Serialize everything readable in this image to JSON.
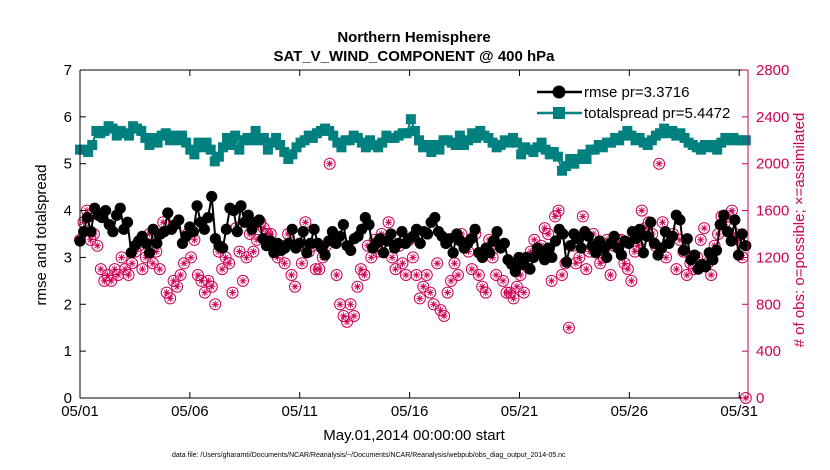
{
  "chart_data": {
    "type": "line",
    "title": "Northern Hemisphere",
    "subtitle": "SAT_V_WIND_COMPONENT @ 400 hPa",
    "xlabel": "May.01,2014 00:00:00 start",
    "ylabel_left": "rmse and totalspread",
    "ylabel_right": "# of obs: o=possible; ×=assimilated",
    "footnote": "data file: /Users/gharamti/Documents/NCAR/Reanalysis/~/Documents/NCAR/Reanalysis/webpub/obs_diag_output_2014-05.nc",
    "xlim": [
      1,
      31.4
    ],
    "ylim_left": [
      0,
      7
    ],
    "ylim_right": [
      0,
      2800
    ],
    "x_ticks": [
      1,
      6,
      11,
      16,
      21,
      26,
      31
    ],
    "x_tick_labels": [
      "05/01",
      "05/06",
      "05/11",
      "05/16",
      "05/21",
      "05/26",
      "05/31"
    ],
    "y_ticks_left": [
      "0",
      "1",
      "2",
      "3",
      "4",
      "5",
      "6",
      "7"
    ],
    "y_ticks_right": [
      "0",
      "400",
      "800",
      "1200",
      "1600",
      "2000",
      "2400",
      "2800"
    ],
    "legend_position": "top-right",
    "colors": {
      "rmse": "#000000",
      "totalspread": "#00807f",
      "obs": "#cc0055"
    },
    "series": [
      {
        "name": "rmse",
        "legend_label": "rmse pr=3.3716",
        "marker": "circle",
        "values": [
          3.35,
          3.55,
          3.85,
          3.55,
          4.05,
          3.9,
          3.85,
          4.0,
          3.7,
          3.55,
          3.9,
          4.05,
          3.6,
          3.75,
          3.1,
          3.25,
          3.35,
          3.45,
          3.3,
          3.1,
          3.6,
          3.3,
          3.5,
          3.55,
          3.95,
          3.6,
          3.7,
          3.8,
          3.3,
          3.45,
          3.65,
          3.55,
          4.1,
          3.75,
          3.6,
          3.85,
          4.3,
          3.4,
          3.25,
          3.2,
          3.6,
          4.05,
          4.0,
          3.55,
          4.1,
          3.75,
          3.9,
          3.6,
          3.75,
          3.8,
          3.4,
          3.25,
          3.35,
          3.1,
          3.3,
          3.15,
          3.2,
          3.3,
          3.6,
          3.2,
          3.3,
          3.55,
          3.1,
          3.3,
          3.6,
          3.3,
          3.2,
          3.05,
          3.35,
          3.55,
          3.3,
          3.45,
          3.7,
          3.25,
          3.15,
          3.4,
          3.45,
          3.6,
          3.85,
          3.7,
          3.2,
          3.3,
          3.4,
          3.1,
          3.35,
          3.5,
          3.2,
          3.3,
          3.55,
          3.3,
          3.4,
          3.45,
          3.6,
          3.3,
          3.55,
          3.5,
          3.75,
          3.85,
          3.55,
          3.45,
          3.3,
          3.4,
          3.1,
          3.5,
          3.35,
          3.2,
          3.3,
          3.4,
          3.6,
          3.1,
          3.0,
          3.2,
          3.1,
          3.35,
          3.55,
          3.2,
          3.3,
          2.95,
          2.85,
          2.7,
          3.0,
          2.85,
          3.0,
          2.75,
          3.0,
          3.2,
          3.1,
          2.95,
          3.2,
          3.0,
          3.35,
          3.6,
          3.5,
          2.9,
          3.25,
          3.5,
          3.4,
          3.2,
          3.55,
          3.45,
          3.25,
          3.1,
          3.35,
          3.2,
          3.0,
          3.3,
          3.45,
          3.2,
          3.05,
          3.35,
          3.3,
          3.55,
          3.4,
          3.6,
          3.1,
          3.45,
          3.75,
          3.3,
          3.05,
          3.2,
          3.55,
          3.3,
          3.45,
          3.9,
          3.8,
          3.15,
          3.4,
          2.95,
          3.05,
          2.75,
          2.85,
          2.8,
          3.1,
          2.95,
          3.15,
          3.7,
          3.9,
          3.55,
          3.35,
          3.8,
          3.05,
          3.5,
          3.25
        ],
        "y_axis": "left"
      },
      {
        "name": "totalspread",
        "legend_label": "totalspread pr=5.4472",
        "marker": "square",
        "values": [
          5.3,
          5.3,
          5.25,
          5.4,
          5.7,
          5.65,
          5.7,
          5.8,
          5.75,
          5.6,
          5.7,
          5.65,
          5.6,
          5.8,
          5.75,
          5.7,
          5.55,
          5.4,
          5.55,
          5.45,
          5.6,
          5.65,
          5.5,
          5.6,
          5.5,
          5.6,
          5.45,
          5.3,
          5.2,
          5.45,
          5.35,
          5.45,
          5.3,
          5.05,
          5.15,
          5.35,
          5.55,
          5.4,
          5.6,
          5.3,
          5.5,
          5.55,
          5.5,
          5.7,
          5.5,
          5.55,
          5.3,
          5.45,
          5.55,
          5.4,
          5.25,
          5.1,
          5.2,
          5.35,
          5.45,
          5.5,
          5.6,
          5.55,
          5.65,
          5.7,
          5.75,
          5.7,
          5.6,
          5.45,
          5.35,
          5.5,
          5.5,
          5.6,
          5.55,
          5.45,
          5.35,
          5.5,
          5.4,
          5.35,
          5.45,
          5.6,
          5.55,
          5.55,
          5.6,
          5.65,
          5.65,
          5.95,
          5.7,
          5.5,
          5.35,
          5.4,
          5.25,
          5.4,
          5.3,
          5.5,
          5.5,
          5.45,
          5.4,
          5.6,
          5.4,
          5.5,
          5.65,
          5.55,
          5.7,
          5.6,
          5.55,
          5.45,
          5.35,
          5.4,
          5.5,
          5.45,
          5.55,
          5.45,
          5.2,
          5.35,
          5.3,
          5.25,
          5.35,
          5.45,
          5.3,
          5.2,
          5.25,
          5.15,
          4.85,
          4.95,
          5.1,
          5.0,
          5.1,
          5.2,
          5.1,
          5.3,
          5.3,
          5.4,
          5.35,
          5.45,
          5.45,
          5.55,
          5.5,
          5.6,
          5.7,
          5.6,
          5.5,
          5.55,
          5.45,
          5.4,
          5.5,
          5.6,
          5.65,
          5.75,
          5.65,
          5.7,
          5.6,
          5.65,
          5.55,
          5.45,
          5.4,
          5.35,
          5.3,
          5.4,
          5.35,
          5.4,
          5.3,
          5.45,
          5.55,
          5.5,
          5.55,
          5.5,
          5.5,
          5.5
        ],
        "y_axis": "left"
      },
      {
        "name": "obs_possible_and_assimilated",
        "marker": "circle-with-star",
        "values": [
          1350,
          1500,
          1600,
          1350,
          1400,
          1300,
          1100,
          1000,
          1050,
          1000,
          1100,
          1050,
          1200,
          1100,
          1050,
          1150,
          1250,
          1300,
          1100,
          1200,
          1400,
          1150,
          1250,
          1100,
          1500,
          900,
          850,
          1000,
          950,
          1050,
          1150,
          1400,
          1200,
          1350,
          1050,
          1000,
          900,
          1000,
          950,
          800,
          1250,
          1100,
          1200,
          1150,
          900,
          1450,
          1250,
          1000,
          1200,
          1400,
          1250,
          1350,
          1500,
          1450,
          1400,
          1400,
          1300,
          1200,
          1300,
          1150,
          1400,
          1050,
          950,
          1300,
          1150,
          1500,
          1250,
          1300,
          1100,
          1100,
          1200,
          1300,
          2000,
          1350,
          1050,
          800,
          700,
          650,
          800,
          700,
          950,
          1100,
          1050,
          1300,
          1200,
          1350,
          1250,
          1400,
          1350,
          1500,
          1200,
          1100,
          1300,
          1150,
          1050,
          1350,
          1200,
          1050,
          850,
          950,
          1050,
          900,
          800,
          1150,
          750,
          700,
          900,
          1000,
          1150,
          1050,
          1400,
          1300,
          1250,
          1100,
          1400,
          1050,
          950,
          900,
          1350,
          1200,
          1050,
          1300,
          1000,
          900,
          900,
          850,
          950,
          1050,
          900,
          1150,
          1250,
          1350,
          1250,
          1300,
          1450,
          1400,
          1000,
          1550,
          1600,
          1050,
          1150,
          600,
          1300,
          1150,
          1200,
          1550,
          1100,
          1250,
          1400,
          1250,
          1150,
          1200,
          1350,
          1050,
          1300,
          1350,
          1350,
          1150,
          1100,
          1000,
          1250,
          1300,
          1600,
          1450,
          1500,
          1400,
          1300,
          2000,
          1500,
          1200,
          1350,
          1400,
          1100,
          1350,
          1250,
          1050,
          1150,
          1100,
          1200,
          1350,
          1450,
          1150,
          1050,
          1300,
          1400,
          1550,
          1500,
          1550,
          1600,
          1400,
          1350,
          1200,
          0
        ],
        "y_axis": "right"
      }
    ]
  }
}
